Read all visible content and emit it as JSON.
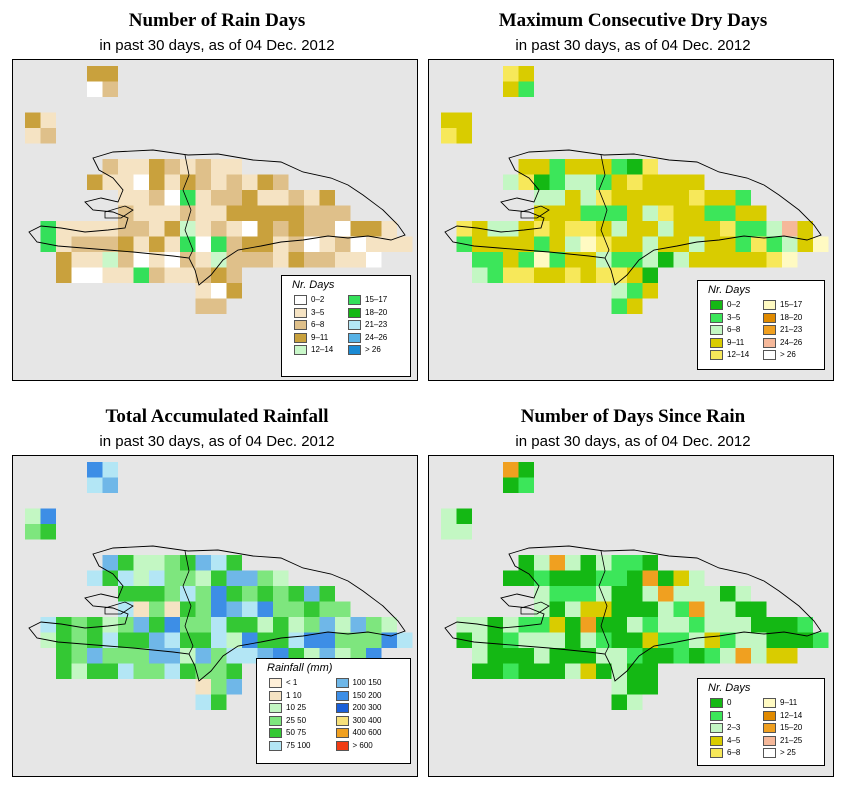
{
  "panels": [
    {
      "id": "rain-days",
      "title": "Number of Rain Days",
      "subtitle": "in past 30 days, as of  04 Dec. 2012",
      "legend_title": "Nr. Days",
      "legend": [
        {
          "label": "0–2",
          "color": "#ffffff"
        },
        {
          "label": "3–5",
          "color": "#f5e3c3"
        },
        {
          "label": "6–8",
          "color": "#dfc08a"
        },
        {
          "label": "9–11",
          "color": "#c9a13d"
        },
        {
          "label": "12–14",
          "color": "#c9f7c9"
        },
        {
          "label": "15–17",
          "color": "#34e05a"
        },
        {
          "label": "18–20",
          "color": "#14b814"
        },
        {
          "label": "21–23",
          "color": "#b3e6f5"
        },
        {
          "label": "24–26",
          "color": "#57b2e6"
        },
        {
          "label": "> 26",
          "color": "#1a8ad4"
        }
      ],
      "cell_palette": [
        "#ffffff",
        "#f5e3c3",
        "#dfc08a",
        "#c9a13d",
        "#c9f7c9",
        "#34e05a"
      ],
      "cell_weights": [
        1,
        4,
        4,
        3,
        0.3,
        0.4
      ]
    },
    {
      "id": "dry-days",
      "title": "Maximum Consecutive Dry Days",
      "subtitle": "in past 30 days, as of  04 Dec. 2012",
      "legend_title": "Nr. Days",
      "legend": [
        {
          "label": "0–2",
          "color": "#14b814"
        },
        {
          "label": "3–5",
          "color": "#3ce65a"
        },
        {
          "label": "6–8",
          "color": "#c3f7c3"
        },
        {
          "label": "9–11",
          "color": "#d9cc00"
        },
        {
          "label": "12–14",
          "color": "#f7e85a"
        },
        {
          "label": "15–17",
          "color": "#fffac2"
        },
        {
          "label": "18–20",
          "color": "#e08a00"
        },
        {
          "label": "21–23",
          "color": "#f0a020"
        },
        {
          "label": "24–26",
          "color": "#f5b89a"
        },
        {
          "label": "> 26",
          "color": "#ffffff"
        }
      ],
      "cell_palette": [
        "#14b814",
        "#3ce65a",
        "#c3f7c3",
        "#d9cc00",
        "#f7e85a",
        "#fffac2",
        "#f5b89a"
      ],
      "cell_weights": [
        0.5,
        1.5,
        1.5,
        5,
        1.8,
        0.5,
        0.1
      ]
    },
    {
      "id": "rainfall",
      "title": "Total Accumulated Rainfall",
      "subtitle": "in past 30 days, as of  04 Dec. 2012",
      "legend_title": "Rainfall (mm)",
      "legend": [
        {
          "label": "< 1",
          "color": "#fff0d9"
        },
        {
          "label": "1    10",
          "color": "#f5e3c3"
        },
        {
          "label": "10    25",
          "color": "#c3f7c3"
        },
        {
          "label": "25    50",
          "color": "#7ee67e"
        },
        {
          "label": "50    75",
          "color": "#34c834"
        },
        {
          "label": "75    100",
          "color": "#b3e6f5"
        },
        {
          "label": "100    150",
          "color": "#6fb7e8"
        },
        {
          "label": "150    200",
          "color": "#3d8ee6"
        },
        {
          "label": "200    300",
          "color": "#1a5fd9"
        },
        {
          "label": "300    400",
          "color": "#f7e07a"
        },
        {
          "label": "400    600",
          "color": "#f0a020"
        },
        {
          "label": "> 600",
          "color": "#f03c14"
        }
      ],
      "cell_palette": [
        "#c3f7c3",
        "#7ee67e",
        "#34c834",
        "#b3e6f5",
        "#6fb7e8",
        "#3d8ee6",
        "#f5e3c3"
      ],
      "cell_weights": [
        1.5,
        3,
        3,
        1.5,
        1.2,
        0.8,
        0.2
      ]
    },
    {
      "id": "since-rain",
      "title": "Number of Days Since Rain",
      "subtitle": "in past 30 days, as of  04 Dec. 2012",
      "legend_title": "Nr. Days",
      "legend": [
        {
          "label": "0",
          "color": "#14b814"
        },
        {
          "label": "1",
          "color": "#3ce65a"
        },
        {
          "label": "2–3",
          "color": "#c3f7c3"
        },
        {
          "label": "4–5",
          "color": "#d9cc00"
        },
        {
          "label": "6–8",
          "color": "#f7e85a"
        },
        {
          "label": "9–11",
          "color": "#fffac2"
        },
        {
          "label": "12–14",
          "color": "#e08a00"
        },
        {
          "label": "15–20",
          "color": "#f0a020"
        },
        {
          "label": "21–25",
          "color": "#f5b89a"
        },
        {
          "label": "> 25",
          "color": "#ffffff"
        }
      ],
      "cell_palette": [
        "#14b814",
        "#3ce65a",
        "#c3f7c3",
        "#d9cc00",
        "#f0a020"
      ],
      "cell_weights": [
        4,
        1.5,
        3,
        0.8,
        0.6
      ]
    }
  ]
}
